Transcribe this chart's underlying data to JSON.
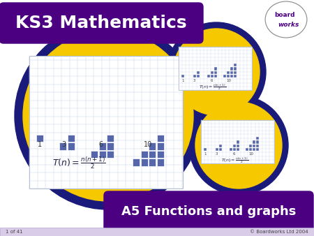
{
  "bg_color": "#ffffff",
  "title_text": "KS3 Mathematics",
  "title_bg": "#4a0080",
  "title_text_color": "#ffffff",
  "subtitle_text": "A5 Functions and graphs",
  "subtitle_bg": "#4a0080",
  "subtitle_text_color": "#ffffff",
  "yellow_color": "#f5c800",
  "dark_blue": "#1a1a7a",
  "grid_color": "#c8d4e8",
  "bar_color": "#5566aa",
  "bar_numbers": [
    "1",
    "3",
    "6",
    "10"
  ],
  "footer_left": "1 of 41",
  "footer_right": "© Boardworks Ltd 2004",
  "boardworks_text_color": "#4a0080",
  "fig_width": 4.5,
  "fig_height": 3.38,
  "fig_dpi": 100
}
